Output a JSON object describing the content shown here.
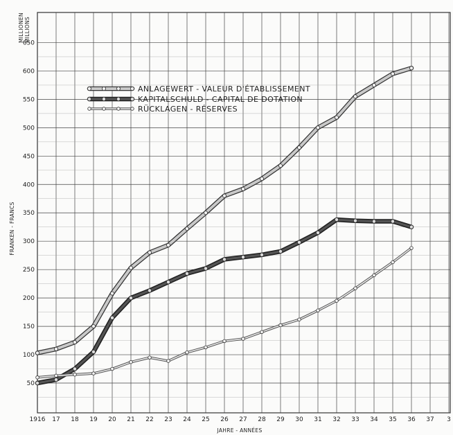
{
  "chart_data": {
    "type": "line",
    "unit_label": [
      "MILLIONEN",
      "MILLIONS"
    ],
    "ylabel": "FRANKEN - FRANCS",
    "xlabel": "JAHRE - ANNÉES",
    "ylim": [
      0,
      650
    ],
    "y_ticks": [
      50,
      100,
      150,
      200,
      250,
      300,
      350,
      400,
      450,
      500,
      550,
      600,
      650
    ],
    "xlim": [
      16,
      37
    ],
    "x": [
      16,
      17,
      18,
      19,
      20,
      21,
      22,
      23,
      24,
      25,
      26,
      27,
      28,
      29,
      30,
      31,
      32,
      33,
      34,
      35,
      36
    ],
    "x_tick_labels": [
      "1916",
      "17",
      "18",
      "19",
      "20",
      "21",
      "22",
      "23",
      "24",
      "25",
      "26",
      "27",
      "28",
      "29",
      "30",
      "31",
      "32",
      "33",
      "34",
      "35",
      "36",
      "37",
      "3"
    ],
    "grid": true,
    "legend_position": "top-left",
    "series": [
      {
        "name": "ANLAGEWERT - VALEUR D'ÉTABLISSEMENT",
        "style": "light-thick",
        "values": [
          103,
          110,
          122,
          150,
          208,
          253,
          280,
          293,
          322,
          350,
          380,
          392,
          410,
          433,
          465,
          500,
          518,
          555,
          575,
          595,
          605
        ]
      },
      {
        "name": "KAPITALSCHULD - CAPITAL DE DOTATION",
        "style": "dark-thick",
        "values": [
          50,
          56,
          75,
          105,
          165,
          200,
          213,
          228,
          243,
          252,
          268,
          272,
          276,
          282,
          298,
          315,
          338,
          336,
          335,
          335,
          325
        ]
      },
      {
        "name": "RÜCKLAGEN - RÉSERVES",
        "style": "light-thin",
        "values": [
          60,
          63,
          65,
          67,
          75,
          87,
          95,
          89,
          104,
          113,
          124,
          128,
          140,
          152,
          162,
          178,
          195,
          217,
          240,
          263,
          288
        ]
      }
    ]
  }
}
